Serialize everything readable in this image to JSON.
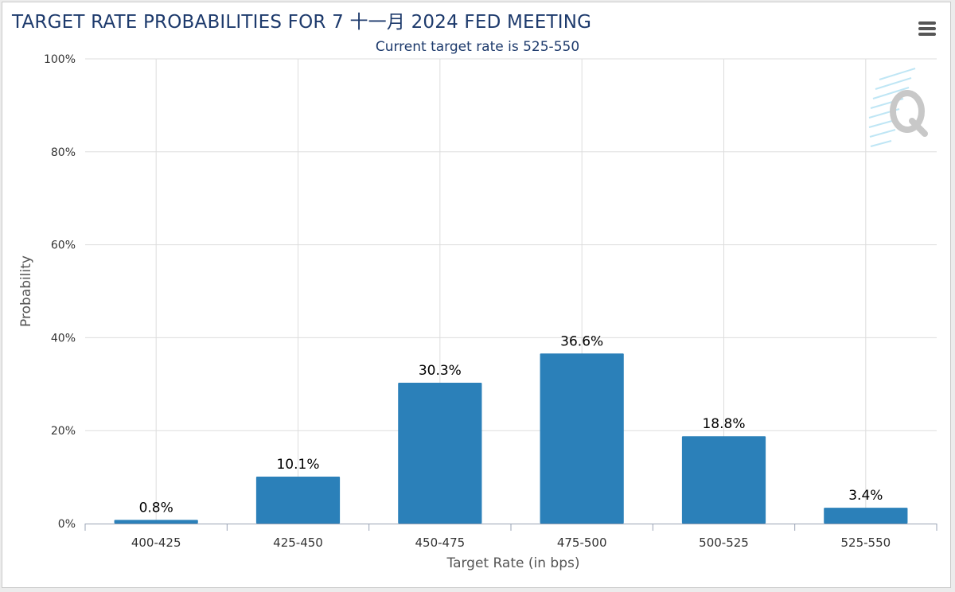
{
  "header": {
    "title": "TARGET RATE PROBABILITIES FOR 7 十一月 2024 FED MEETING",
    "subtitle": "Current target rate is 525-550"
  },
  "toolbar": {
    "menu_icon": "hamburger-menu-icon"
  },
  "watermark": {
    "icon": "quikstrike-q-logo"
  },
  "colors": {
    "bar": "#2b80b9",
    "grid": "#dddddd",
    "title": "#1d3a6c"
  },
  "chart_data": {
    "type": "bar",
    "title": "TARGET RATE PROBABILITIES FOR 7 十一月 2024 FED MEETING",
    "subtitle": "Current target rate is 525-550",
    "xlabel": "Target Rate (in bps)",
    "ylabel": "Probability",
    "categories": [
      "400-425",
      "425-450",
      "450-475",
      "475-500",
      "500-525",
      "525-550"
    ],
    "values": [
      0.8,
      10.1,
      30.3,
      36.6,
      18.8,
      3.4
    ],
    "data_labels": [
      "0.8%",
      "10.1%",
      "30.3%",
      "36.6%",
      "18.8%",
      "3.4%"
    ],
    "ylim": [
      0,
      100
    ],
    "yticks": [
      0,
      20,
      40,
      60,
      80,
      100
    ],
    "ytick_labels": [
      "0%",
      "20%",
      "40%",
      "60%",
      "80%",
      "100%"
    ],
    "grid": true,
    "legend": "none"
  }
}
